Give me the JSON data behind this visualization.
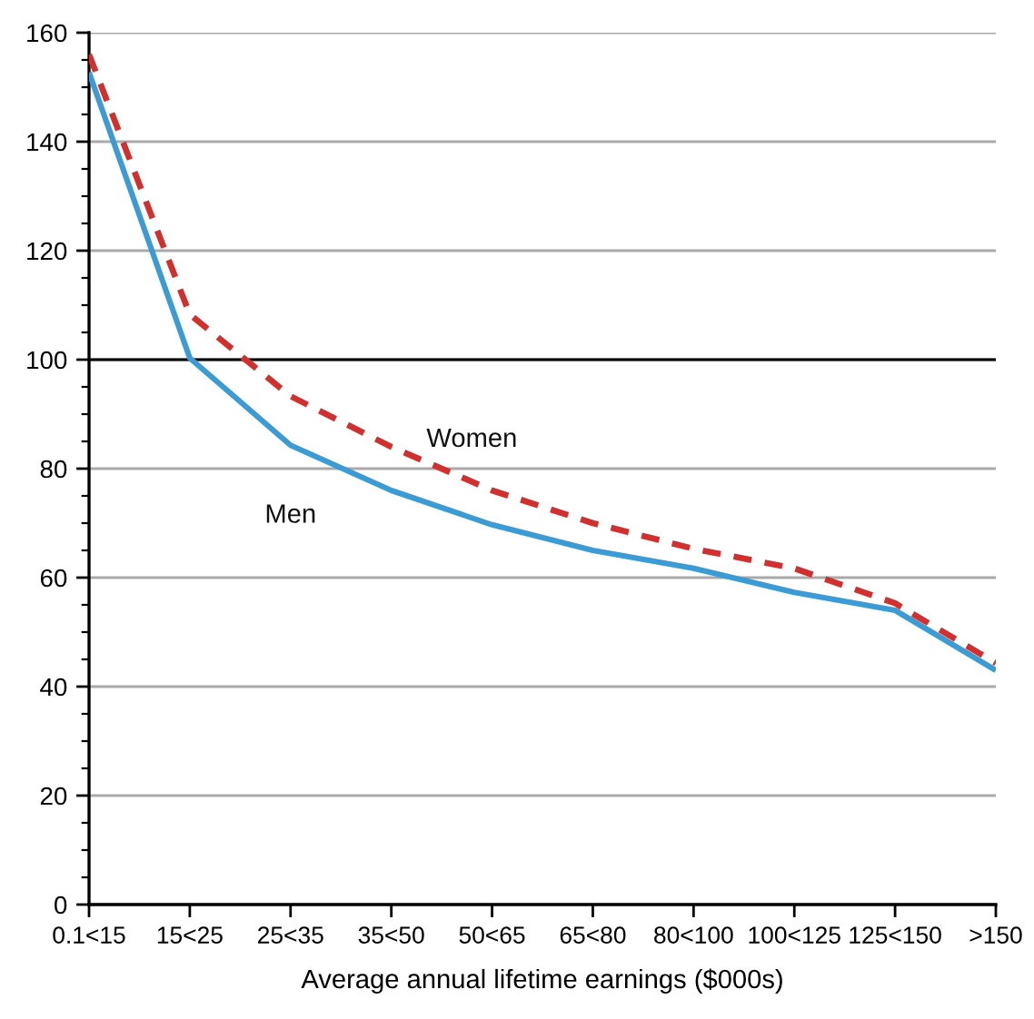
{
  "chart_data": {
    "type": "line",
    "xlabel": "Average annual lifetime earnings ($000s)",
    "categories": [
      "0.1<15",
      "15<25",
      "25<35",
      "35<50",
      "50<65",
      "65<80",
      "80<100",
      "100<125",
      "125<150",
      ">150"
    ],
    "series": [
      {
        "name": "Men",
        "color": "#3a9bd5",
        "line_style": "solid",
        "values": [
          152.7,
          100.3,
          84.3,
          76,
          69.7,
          65,
          61.7,
          57.3,
          54,
          43
        ]
      },
      {
        "name": "Women",
        "color": "#d2302f",
        "line_style": "dashed",
        "values": [
          156,
          108.3,
          93.3,
          84,
          76,
          70,
          65.3,
          61.7,
          55.3,
          44.3
        ]
      }
    ],
    "ylim": [
      0,
      160
    ],
    "yticks": [
      0,
      20,
      40,
      60,
      80,
      100,
      120,
      140,
      160
    ],
    "grid": "y",
    "legend": false,
    "marker": "none",
    "ref_lines": [
      {
        "axis": "y",
        "value": 100,
        "color": "#000000"
      }
    ]
  }
}
